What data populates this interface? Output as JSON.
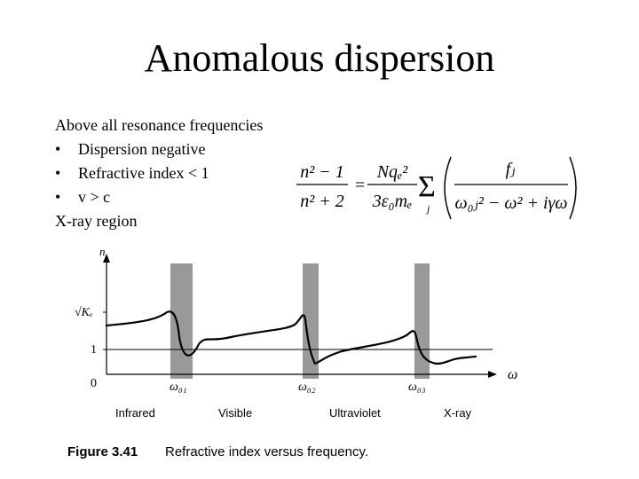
{
  "slide": {
    "title": "Anomalous dispersion",
    "lines": [
      {
        "bullet": false,
        "text": "Above all resonance frequencies"
      },
      {
        "bullet": true,
        "text": "Dispersion negative"
      },
      {
        "bullet": true,
        "text": "Refractive index < 1"
      },
      {
        "bullet": true,
        "text": "v > c"
      },
      {
        "bullet": false,
        "text": "X-ray region"
      }
    ],
    "bullet_symbol": "•"
  },
  "equation": {
    "lhs_num": "n² − 1",
    "lhs_den": "n² + 2",
    "equals": "=",
    "mid_num": "Nqₑ²",
    "mid_den": "3ε₀mₑ",
    "sum": "Σ",
    "sum_index": "j",
    "frac_num": "fⱼ",
    "frac_den": "ω₀ⱼ² − ω² + iγω"
  },
  "figure": {
    "y_axis_label": "n",
    "x_axis_label": "ω",
    "y_ticks": [
      "√Kₑ",
      "1",
      "0"
    ],
    "resonances": [
      "ω₀₁",
      "ω₀₂",
      "ω₀₃"
    ],
    "regions": [
      "Infrared",
      "Visible",
      "Ultraviolet",
      "X-ray"
    ],
    "caption_label": "Figure 3.41",
    "caption_text": "Refractive index versus frequency.",
    "band_color": "#999999"
  }
}
